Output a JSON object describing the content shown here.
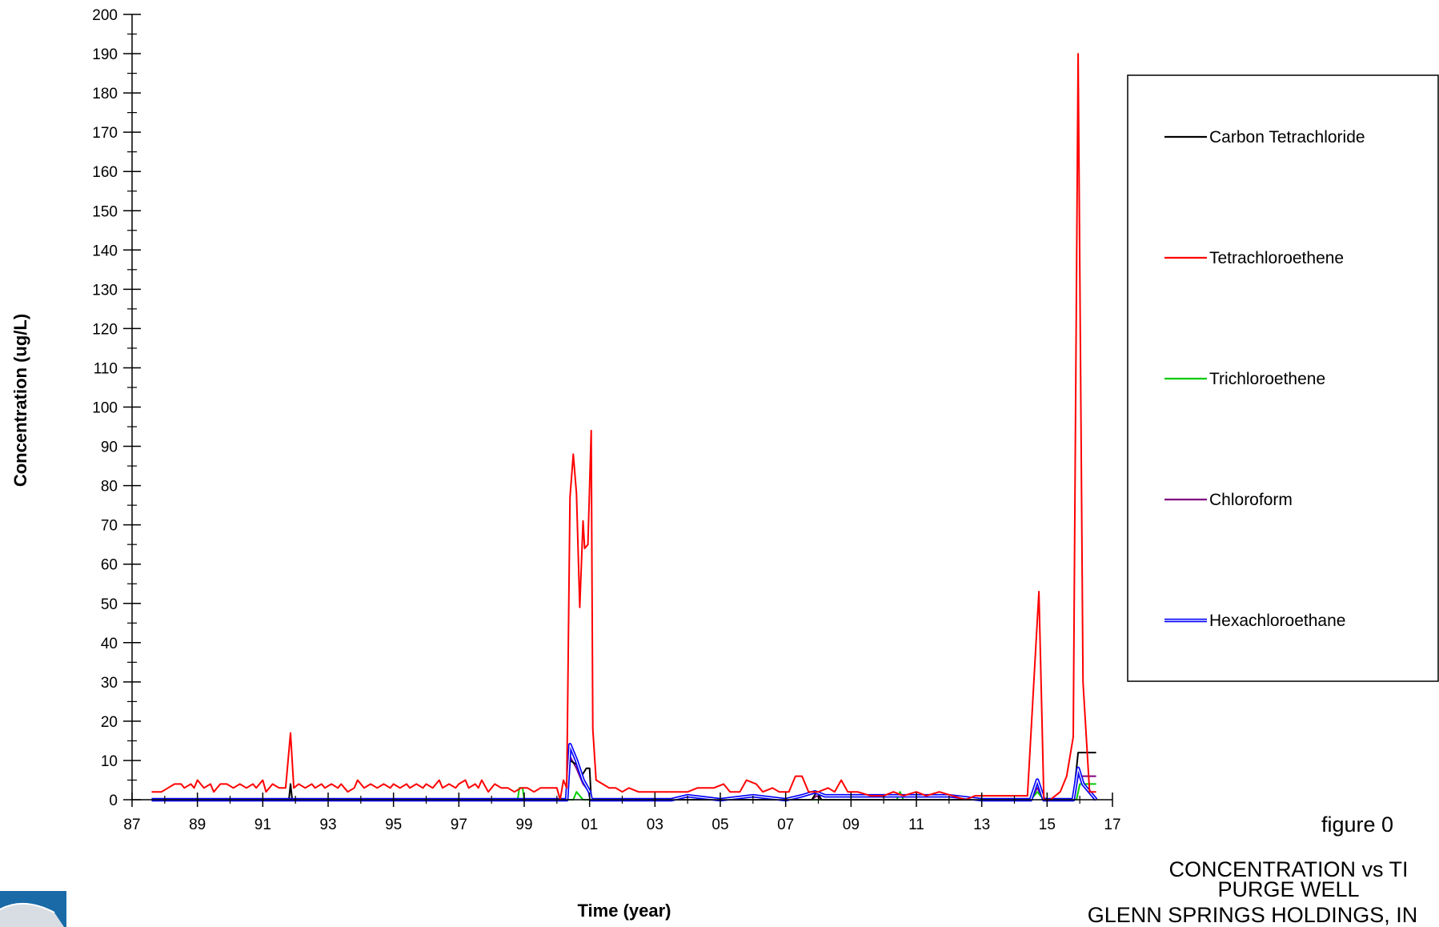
{
  "chart_data": {
    "type": "line",
    "title": "",
    "xlabel": "Time (year)",
    "ylabel": "Concentration (ug/L)",
    "xlim": [
      1987,
      2017
    ],
    "ylim": [
      0,
      200
    ],
    "x_ticks": [
      "87",
      "89",
      "91",
      "93",
      "95",
      "97",
      "99",
      "01",
      "03",
      "05",
      "07",
      "09",
      "11",
      "13",
      "15",
      "17"
    ],
    "y_ticks": [
      0,
      10,
      20,
      30,
      40,
      50,
      60,
      70,
      80,
      90,
      100,
      110,
      120,
      130,
      140,
      150,
      160,
      170,
      180,
      190,
      200
    ],
    "legend_position": "right",
    "grid": false,
    "series": [
      {
        "name": "Carbon Tetrachloride",
        "color": "#000000",
        "style": "single",
        "points": [
          [
            1987.6,
            0
          ],
          [
            1991.8,
            0
          ],
          [
            1991.85,
            4
          ],
          [
            1991.9,
            0
          ],
          [
            1998.9,
            0
          ],
          [
            1999.0,
            0
          ],
          [
            2000.3,
            0
          ],
          [
            2000.4,
            10
          ],
          [
            2000.6,
            9
          ],
          [
            2000.75,
            6
          ],
          [
            2000.9,
            8
          ],
          [
            2001.0,
            8
          ],
          [
            2001.05,
            0
          ],
          [
            2007.8,
            0
          ],
          [
            2007.95,
            2
          ],
          [
            2008.1,
            0
          ],
          [
            2014.5,
            0
          ],
          [
            2014.7,
            5
          ],
          [
            2014.9,
            0
          ],
          [
            2015.8,
            0
          ],
          [
            2015.95,
            12
          ],
          [
            2016.5,
            12
          ]
        ]
      },
      {
        "name": "Tetrachloroethene",
        "color": "#ff0000",
        "style": "single",
        "points": [
          [
            1987.6,
            2
          ],
          [
            1987.9,
            2
          ],
          [
            1988.1,
            3
          ],
          [
            1988.3,
            4
          ],
          [
            1988.5,
            4
          ],
          [
            1988.6,
            3
          ],
          [
            1988.8,
            4
          ],
          [
            1988.9,
            3
          ],
          [
            1989.0,
            5
          ],
          [
            1989.2,
            3
          ],
          [
            1989.4,
            4
          ],
          [
            1989.5,
            2
          ],
          [
            1989.7,
            4
          ],
          [
            1989.9,
            4
          ],
          [
            1990.1,
            3
          ],
          [
            1990.3,
            4
          ],
          [
            1990.5,
            3
          ],
          [
            1990.7,
            4
          ],
          [
            1990.8,
            3
          ],
          [
            1991.0,
            5
          ],
          [
            1991.1,
            2
          ],
          [
            1991.3,
            4
          ],
          [
            1991.5,
            3
          ],
          [
            1991.7,
            3
          ],
          [
            1991.85,
            17
          ],
          [
            1991.95,
            3
          ],
          [
            1992.1,
            4
          ],
          [
            1992.3,
            3
          ],
          [
            1992.5,
            4
          ],
          [
            1992.6,
            3
          ],
          [
            1992.8,
            4
          ],
          [
            1992.9,
            3
          ],
          [
            1993.1,
            4
          ],
          [
            1993.3,
            3
          ],
          [
            1993.4,
            4
          ],
          [
            1993.6,
            2
          ],
          [
            1993.8,
            3
          ],
          [
            1993.9,
            5
          ],
          [
            1994.1,
            3
          ],
          [
            1994.3,
            4
          ],
          [
            1994.5,
            3
          ],
          [
            1994.7,
            4
          ],
          [
            1994.9,
            3
          ],
          [
            1995.0,
            4
          ],
          [
            1995.2,
            3
          ],
          [
            1995.4,
            4
          ],
          [
            1995.5,
            3
          ],
          [
            1995.7,
            4
          ],
          [
            1995.9,
            3
          ],
          [
            1996.0,
            4
          ],
          [
            1996.2,
            3
          ],
          [
            1996.4,
            5
          ],
          [
            1996.5,
            3
          ],
          [
            1996.7,
            4
          ],
          [
            1996.9,
            3
          ],
          [
            1997.0,
            4
          ],
          [
            1997.2,
            5
          ],
          [
            1997.3,
            3
          ],
          [
            1997.5,
            4
          ],
          [
            1997.6,
            3
          ],
          [
            1997.7,
            5
          ],
          [
            1997.9,
            2
          ],
          [
            1998.1,
            4
          ],
          [
            1998.3,
            3
          ],
          [
            1998.5,
            3
          ],
          [
            1998.7,
            2
          ],
          [
            1998.9,
            3
          ],
          [
            1999.1,
            3
          ],
          [
            1999.3,
            2
          ],
          [
            1999.5,
            3
          ],
          [
            1999.7,
            3
          ],
          [
            1999.9,
            3
          ],
          [
            2000.0,
            3
          ],
          [
            2000.1,
            0
          ],
          [
            2000.2,
            5
          ],
          [
            2000.3,
            3
          ],
          [
            2000.4,
            77
          ],
          [
            2000.5,
            88
          ],
          [
            2000.6,
            78
          ],
          [
            2000.7,
            49
          ],
          [
            2000.8,
            71
          ],
          [
            2000.85,
            64
          ],
          [
            2000.95,
            65
          ],
          [
            2001.05,
            94
          ],
          [
            2001.1,
            18
          ],
          [
            2001.2,
            5
          ],
          [
            2001.4,
            4
          ],
          [
            2001.6,
            3
          ],
          [
            2001.8,
            3
          ],
          [
            2002.0,
            2
          ],
          [
            2002.2,
            3
          ],
          [
            2002.5,
            2
          ],
          [
            2003.0,
            2
          ],
          [
            2003.5,
            2
          ],
          [
            2004.0,
            2
          ],
          [
            2004.3,
            3
          ],
          [
            2004.8,
            3
          ],
          [
            2005.1,
            4
          ],
          [
            2005.3,
            2
          ],
          [
            2005.6,
            2
          ],
          [
            2005.8,
            5
          ],
          [
            2006.1,
            4
          ],
          [
            2006.3,
            2
          ],
          [
            2006.6,
            3
          ],
          [
            2006.8,
            2
          ],
          [
            2007.1,
            2
          ],
          [
            2007.3,
            6
          ],
          [
            2007.5,
            6
          ],
          [
            2007.7,
            2
          ],
          [
            2008.0,
            2
          ],
          [
            2008.3,
            3
          ],
          [
            2008.5,
            2
          ],
          [
            2008.7,
            5
          ],
          [
            2008.9,
            2
          ],
          [
            2009.2,
            2
          ],
          [
            2009.6,
            1
          ],
          [
            2010.0,
            1
          ],
          [
            2010.3,
            2
          ],
          [
            2010.6,
            1
          ],
          [
            2011.0,
            2
          ],
          [
            2011.3,
            1
          ],
          [
            2011.7,
            2
          ],
          [
            2012.1,
            1
          ],
          [
            2012.5,
            0
          ],
          [
            2012.8,
            1
          ],
          [
            2013.2,
            1
          ],
          [
            2013.6,
            1
          ],
          [
            2014.0,
            1
          ],
          [
            2014.4,
            1
          ],
          [
            2014.75,
            53
          ],
          [
            2014.9,
            0
          ],
          [
            2015.1,
            0
          ],
          [
            2015.4,
            2
          ],
          [
            2015.6,
            6
          ],
          [
            2015.8,
            16
          ],
          [
            2015.95,
            190
          ],
          [
            2016.1,
            30
          ],
          [
            2016.3,
            2
          ],
          [
            2016.5,
            2
          ]
        ]
      },
      {
        "name": "Trichloroethene",
        "color": "#00cc00",
        "style": "single",
        "points": [
          [
            1987.6,
            0
          ],
          [
            1998.8,
            0
          ],
          [
            1998.85,
            3
          ],
          [
            1998.95,
            3
          ],
          [
            1999.0,
            0
          ],
          [
            2000.5,
            0
          ],
          [
            2000.6,
            2
          ],
          [
            2000.8,
            0
          ],
          [
            2010.4,
            0
          ],
          [
            2010.5,
            2
          ],
          [
            2010.6,
            0
          ],
          [
            2014.5,
            0
          ],
          [
            2014.7,
            2
          ],
          [
            2014.9,
            0
          ],
          [
            2015.9,
            0
          ],
          [
            2016.0,
            4
          ],
          [
            2016.5,
            4
          ]
        ]
      },
      {
        "name": "Chloroform",
        "color": "#800080",
        "style": "single",
        "points": [
          [
            1987.6,
            0
          ],
          [
            2000.3,
            0
          ],
          [
            2000.4,
            11
          ],
          [
            2000.6,
            8
          ],
          [
            2000.8,
            4
          ],
          [
            2001.0,
            2
          ],
          [
            2001.05,
            0
          ],
          [
            2007.8,
            0
          ],
          [
            2007.95,
            1
          ],
          [
            2008.1,
            0
          ],
          [
            2014.5,
            0
          ],
          [
            2014.7,
            3
          ],
          [
            2014.9,
            0
          ],
          [
            2015.8,
            0
          ],
          [
            2015.95,
            6
          ],
          [
            2016.5,
            6
          ]
        ]
      },
      {
        "name": "Hexachloroethane",
        "color": "#0000ff",
        "style": "double",
        "points": [
          [
            1987.6,
            0
          ],
          [
            1999.0,
            0
          ],
          [
            2000.3,
            0
          ],
          [
            2000.4,
            14
          ],
          [
            2000.6,
            10
          ],
          [
            2000.8,
            5
          ],
          [
            2001.0,
            2
          ],
          [
            2001.05,
            0
          ],
          [
            2003.5,
            0
          ],
          [
            2004.0,
            1
          ],
          [
            2005.0,
            0
          ],
          [
            2006.0,
            1
          ],
          [
            2007.0,
            0
          ],
          [
            2007.5,
            1
          ],
          [
            2007.9,
            2
          ],
          [
            2008.2,
            1
          ],
          [
            2009.0,
            1
          ],
          [
            2010.0,
            1
          ],
          [
            2011.0,
            1
          ],
          [
            2012.0,
            1
          ],
          [
            2013.0,
            0
          ],
          [
            2014.5,
            0
          ],
          [
            2014.7,
            5
          ],
          [
            2014.9,
            0
          ],
          [
            2015.8,
            0
          ],
          [
            2015.95,
            8
          ],
          [
            2016.1,
            4
          ],
          [
            2016.5,
            0
          ]
        ]
      }
    ]
  },
  "figure_caption": {
    "number": "figure 0",
    "line1": "CONCENTRATION vs TI",
    "line2": "PURGE WELL",
    "line3": "GLENN SPRINGS HOLDINGS, IN"
  }
}
